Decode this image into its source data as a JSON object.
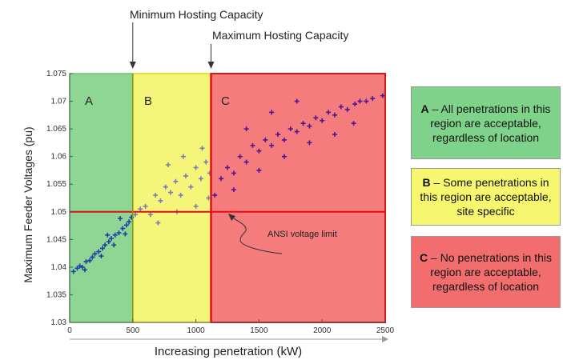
{
  "chart_data": {
    "type": "scatter",
    "ylabel": "Maximum Feeder Voltages (pu)",
    "xlabel": "Increasing penetration (kW)",
    "xlim": [
      0,
      2500
    ],
    "ylim": [
      1.03,
      1.075
    ],
    "x_ticks": [
      "0",
      "500",
      "1000",
      "1500",
      "2000",
      "2500"
    ],
    "y_ticks": [
      "1.03",
      "1.035",
      "1.04",
      "1.045",
      "1.05",
      "1.055",
      "1.06",
      "1.065",
      "1.07",
      "1.075"
    ],
    "min_hosting_capacity_kw": 500,
    "max_hosting_capacity_kw": 1120,
    "ansi_limit_pu": 1.05,
    "grid": false,
    "marker": "+",
    "regions": [
      {
        "label": "A",
        "from": 0,
        "to": 500,
        "color": "#8fd694"
      },
      {
        "label": "B",
        "from": 500,
        "to": 1120,
        "color": "#f5f57a"
      },
      {
        "label": "C",
        "from": 1120,
        "to": 2500,
        "color": "#f47c7c"
      }
    ],
    "series": [
      {
        "color": "#1f3ea8",
        "points": [
          [
            30,
            1.0392
          ],
          [
            60,
            1.0398
          ],
          [
            80,
            1.0402
          ],
          [
            100,
            1.04
          ],
          [
            130,
            1.041
          ],
          [
            160,
            1.0412
          ],
          [
            180,
            1.0418
          ],
          [
            200,
            1.0424
          ],
          [
            230,
            1.0428
          ],
          [
            260,
            1.0434
          ],
          [
            280,
            1.044
          ],
          [
            310,
            1.0446
          ],
          [
            330,
            1.0452
          ],
          [
            360,
            1.0458
          ],
          [
            390,
            1.0462
          ],
          [
            420,
            1.047
          ],
          [
            450,
            1.0476
          ],
          [
            470,
            1.0482
          ],
          [
            490,
            1.049
          ],
          [
            120,
            1.0395
          ],
          [
            250,
            1.042
          ],
          [
            350,
            1.044
          ],
          [
            440,
            1.046
          ],
          [
            300,
            1.0458
          ],
          [
            400,
            1.0488
          ]
        ]
      },
      {
        "color": "#7a7ab8",
        "points": [
          [
            520,
            1.0495
          ],
          [
            560,
            1.0505
          ],
          [
            600,
            1.051
          ],
          [
            640,
            1.0495
          ],
          [
            680,
            1.053
          ],
          [
            720,
            1.052
          ],
          [
            760,
            1.0545
          ],
          [
            800,
            1.0535
          ],
          [
            840,
            1.0555
          ],
          [
            880,
            1.053
          ],
          [
            920,
            1.0565
          ],
          [
            960,
            1.0545
          ],
          [
            1000,
            1.058
          ],
          [
            1040,
            1.056
          ],
          [
            1080,
            1.059
          ],
          [
            1110,
            1.057
          ],
          [
            700,
            1.048
          ],
          [
            850,
            1.05
          ],
          [
            1000,
            1.051
          ],
          [
            1100,
            1.0525
          ],
          [
            780,
            1.0585
          ],
          [
            900,
            1.06
          ],
          [
            1050,
            1.0615
          ]
        ]
      },
      {
        "color": "#4d1597",
        "points": [
          [
            1150,
            1.053
          ],
          [
            1200,
            1.056
          ],
          [
            1250,
            1.058
          ],
          [
            1300,
            1.057
          ],
          [
            1350,
            1.06
          ],
          [
            1400,
            1.059
          ],
          [
            1450,
            1.062
          ],
          [
            1500,
            1.061
          ],
          [
            1550,
            1.063
          ],
          [
            1600,
            1.062
          ],
          [
            1650,
            1.064
          ],
          [
            1700,
            1.063
          ],
          [
            1750,
            1.065
          ],
          [
            1800,
            1.0645
          ],
          [
            1850,
            1.066
          ],
          [
            1900,
            1.0655
          ],
          [
            1950,
            1.067
          ],
          [
            2000,
            1.0665
          ],
          [
            2050,
            1.068
          ],
          [
            2100,
            1.0675
          ],
          [
            2150,
            1.069
          ],
          [
            2200,
            1.0685
          ],
          [
            2260,
            1.0695
          ],
          [
            2300,
            1.07
          ],
          [
            2350,
            1.07
          ],
          [
            2400,
            1.0705
          ],
          [
            2480,
            1.071
          ],
          [
            1300,
            1.054
          ],
          [
            1500,
            1.0575
          ],
          [
            1700,
            1.06
          ],
          [
            1900,
            1.0625
          ],
          [
            1600,
            1.068
          ],
          [
            1800,
            1.07
          ],
          [
            1400,
            1.065
          ],
          [
            2100,
            1.064
          ],
          [
            2250,
            1.066
          ]
        ]
      }
    ],
    "annotations": [
      "Minimum Hosting Capacity",
      "Maximum Hosting Capacity",
      "ANSI voltage limit"
    ]
  },
  "region_labels": {
    "a": "A",
    "b": "B",
    "c": "C"
  },
  "annotations": {
    "min_hosting": "Minimum Hosting Capacity",
    "max_hosting": "Maximum Hosting Capacity",
    "ansi": "ANSI voltage limit"
  },
  "legend": {
    "a": {
      "letter": "A",
      "text": " – All penetrations in this region are acceptable, regardless of location"
    },
    "b": {
      "letter": "B",
      "text": " – Some penetrations in this region are acceptable, site specific"
    },
    "c": {
      "letter": "C",
      "text": " – No penetrations in this region are acceptable, regardless of location"
    }
  }
}
